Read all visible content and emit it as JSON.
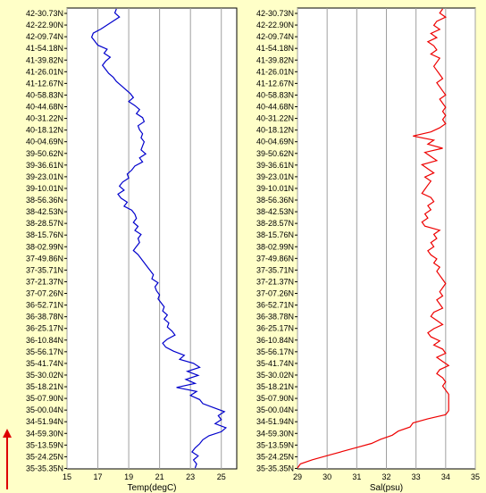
{
  "chart_data": [
    {
      "type": "line",
      "xlabel": "Temp(degC)",
      "ylabel": "",
      "xlim": [
        15,
        26
      ],
      "xticks": [
        15,
        17,
        19,
        21,
        23,
        25
      ],
      "yticks": [
        "42-30.73N",
        "42-22.90N",
        "42-09.74N",
        "41-54.18N",
        "41-39.82N",
        "41-26.01N",
        "41-12.67N",
        "40-58.83N",
        "40-44.68N",
        "40-31.22N",
        "40-18.12N",
        "40-04.69N",
        "39-50.62N",
        "39-36.61N",
        "39-23.01N",
        "39-10.01N",
        "38-56.36N",
        "38-42.53N",
        "38-28.57N",
        "38-15.76N",
        "38-02.99N",
        "37-49.86N",
        "37-35.71N",
        "37-21.37N",
        "37-07.26N",
        "36-52.71N",
        "36-38.78N",
        "36-25.17N",
        "36-10.84N",
        "35-56.17N",
        "35-41.74N",
        "35-30.02N",
        "35-18.21N",
        "35-07.90N",
        "35-00.04N",
        "34-51.94N",
        "34-59.30N",
        "35-13.59N",
        "35-24.25N",
        "35-35.35N"
      ],
      "color": "#0000CC",
      "series": [
        {
          "values": [
            18.2,
            18.1,
            18.4,
            18.0,
            17.6,
            17.2,
            16.7,
            16.6,
            16.8,
            17.0,
            17.6,
            17.4,
            17.8,
            17.5,
            17.3,
            17.5,
            17.7,
            18.0,
            18.2,
            18.5,
            18.8,
            19.1,
            19.3,
            19.0,
            19.4,
            19.7,
            19.5,
            19.9,
            20.0,
            19.6,
            19.7,
            19.9,
            19.8,
            20.0,
            19.9,
            19.8,
            20.1,
            19.7,
            19.9,
            19.4,
            19.2,
            18.9,
            19.0,
            18.6,
            18.4,
            18.7,
            18.3,
            18.5,
            18.9,
            18.7,
            19.2,
            19.4,
            19.5,
            19.3,
            19.6,
            19.4,
            19.8,
            19.6,
            19.7,
            19.5,
            19.3,
            19.6,
            19.8,
            20.0,
            20.2,
            20.4,
            20.6,
            20.5,
            20.9,
            20.7,
            20.8,
            21.0,
            20.9,
            21.1,
            21.3,
            21.2,
            21.5,
            21.3,
            21.6,
            21.5,
            21.8,
            22.0,
            21.5,
            21.2,
            21.4,
            21.9,
            22.6,
            22.3,
            23.2,
            23.6,
            22.8,
            23.5,
            22.7,
            23.3,
            22.1,
            23.4,
            23.0,
            23.6,
            23.8,
            24.5,
            25.2,
            24.8,
            25.0,
            24.6,
            25.3,
            25.0,
            24.2,
            23.8,
            23.6,
            23.3,
            23.1,
            23.5,
            23.2,
            23.4,
            23.3
          ]
        }
      ]
    },
    {
      "type": "line",
      "xlabel": "Sal(psu)",
      "ylabel": "",
      "xlim": [
        29,
        35
      ],
      "xticks": [
        29,
        30,
        31,
        32,
        33,
        34,
        35
      ],
      "yticks": [
        "42-30.73N",
        "42-22.90N",
        "42-09.74N",
        "41-54.18N",
        "41-39.82N",
        "41-26.01N",
        "41-12.67N",
        "40-58.83N",
        "40-44.68N",
        "40-31.22N",
        "40-18.12N",
        "40-04.69N",
        "39-50.62N",
        "39-36.61N",
        "39-23.01N",
        "39-10.01N",
        "38-56.36N",
        "38-42.53N",
        "38-28.57N",
        "38-15.76N",
        "38-02.99N",
        "37-49.86N",
        "37-35.71N",
        "37-21.37N",
        "37-07.26N",
        "36-52.71N",
        "36-38.78N",
        "36-25.17N",
        "36-10.84N",
        "35-56.17N",
        "35-41.74N",
        "35-30.02N",
        "35-18.21N",
        "35-07.90N",
        "35-00.04N",
        "34-51.94N",
        "34-59.30N",
        "35-13.59N",
        "35-24.25N",
        "35-35.35N"
      ],
      "color": "#EE0000",
      "series": [
        {
          "values": [
            33.9,
            33.8,
            34.0,
            33.7,
            33.6,
            33.8,
            33.5,
            33.7,
            33.4,
            33.6,
            33.7,
            33.5,
            33.8,
            33.7,
            33.6,
            33.7,
            33.8,
            33.9,
            33.7,
            33.8,
            33.9,
            34.0,
            33.8,
            33.9,
            34.0,
            33.9,
            34.0,
            33.9,
            34.0,
            33.8,
            33.5,
            32.9,
            33.6,
            33.4,
            33.9,
            33.3,
            33.5,
            33.7,
            33.2,
            33.4,
            33.6,
            33.3,
            33.5,
            33.4,
            33.3,
            33.2,
            33.5,
            33.6,
            33.4,
            33.5,
            33.3,
            33.4,
            33.2,
            33.3,
            33.8,
            33.6,
            33.7,
            33.5,
            33.6,
            33.4,
            33.5,
            33.7,
            33.6,
            33.8,
            33.7,
            33.8,
            33.9,
            34.0,
            33.9,
            33.8,
            33.9,
            33.7,
            33.8,
            33.9,
            33.6,
            33.5,
            33.7,
            33.9,
            33.6,
            33.4,
            33.5,
            33.8,
            33.6,
            33.9,
            34.0,
            33.7,
            33.9,
            34.1,
            33.8,
            33.7,
            33.9,
            34.0,
            33.9,
            34.0,
            34.1,
            34.1,
            34.1,
            34.1,
            34.1,
            34.0,
            33.4,
            32.9,
            32.8,
            32.4,
            32.2,
            31.8,
            31.5,
            31.0,
            30.5,
            30.0,
            29.5,
            29.1,
            29.0
          ]
        }
      ]
    }
  ]
}
